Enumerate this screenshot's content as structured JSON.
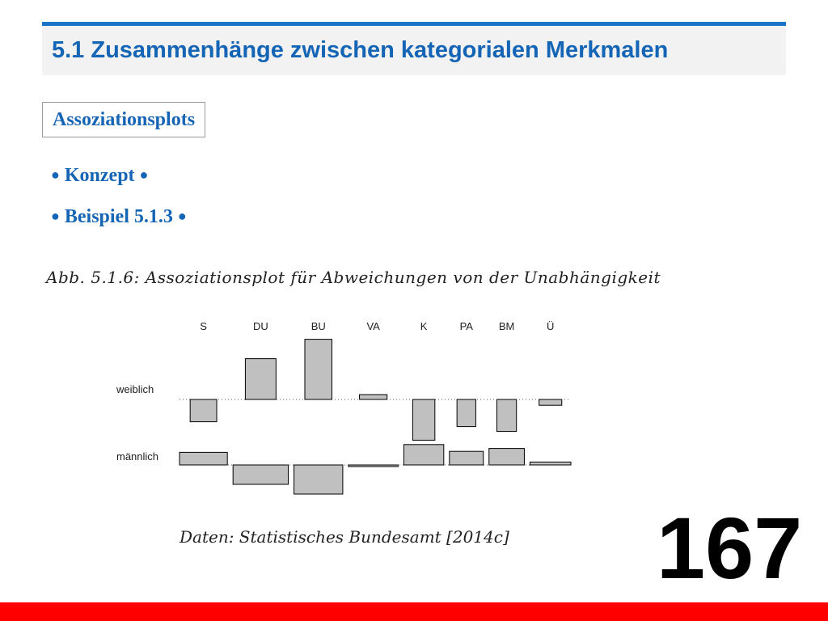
{
  "slide": {
    "title": "5.1 Zusammenhänge zwischen kategorialen Merkmalen",
    "section": "Assoziationsplots",
    "bullets": [
      {
        "dot_left": "●",
        "text": "Konzept",
        "dot_right": "●"
      },
      {
        "dot_left": "●",
        "text": "Beispiel 5.1.3",
        "dot_right": "●"
      }
    ],
    "figure_caption": "Abb. 5.1.6: Assoziationsplot für Abweichungen von der Unabhängigkeit",
    "source": "Daten: Statistisches Bundesamt [2014c]",
    "page_number": "167",
    "colors": {
      "accent": "#1565b6",
      "title_rule": "#1a73c6",
      "footer": "#ff0000",
      "bar_fill": "#c0c0c0"
    }
  },
  "chart_data": {
    "type": "association",
    "title": "",
    "columns": [
      "S",
      "DU",
      "BU",
      "VA",
      "K",
      "PA",
      "BM",
      "Ü"
    ],
    "rows": [
      "weiblich",
      "männlich"
    ],
    "column_widths": [
      1.03,
      1.19,
      1.05,
      1.07,
      0.86,
      0.73,
      0.76,
      0.88
    ],
    "row_widths": [
      0.55,
      1.0
    ],
    "residuals": {
      "weiblich": [
        -2.3,
        4.2,
        6.2,
        0.5,
        -4.2,
        -2.8,
        -3.3,
        -0.6
      ],
      "männlich": [
        1.3,
        -2.0,
        -3.0,
        -0.1,
        2.1,
        1.4,
        1.7,
        0.3
      ]
    },
    "baseline": "dotted",
    "grid": false,
    "legend": "none"
  }
}
